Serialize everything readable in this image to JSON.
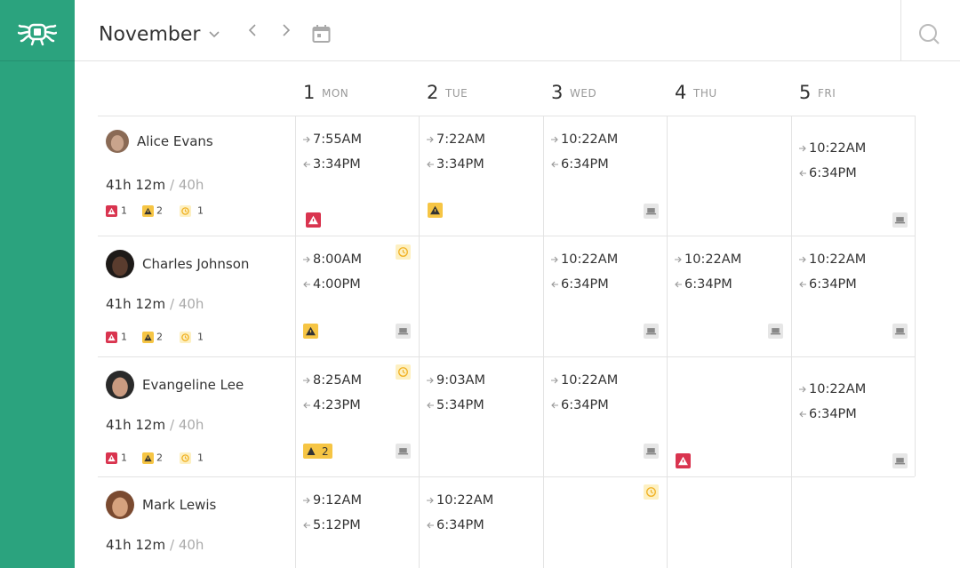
{
  "header": {
    "month": "November"
  },
  "days": [
    {
      "number": "1",
      "name": "MON"
    },
    {
      "number": "2",
      "name": "TUE"
    },
    {
      "number": "3",
      "name": "WED"
    },
    {
      "number": "4",
      "name": "THU"
    },
    {
      "number": "5",
      "name": "FRI"
    }
  ],
  "employees": [
    {
      "name": "Alice Evans",
      "worked": "41h 12m",
      "planned": "/ 40h",
      "alerts": 1,
      "warnings": 2,
      "late": 1,
      "shifts": [
        {
          "in": "7:55AM",
          "out": "3:34PM"
        },
        {
          "in": "7:22AM",
          "out": "3:34PM"
        },
        {
          "in": "10:22AM",
          "out": "6:34PM"
        },
        null,
        {
          "in": "10:22AM",
          "out": "6:34PM"
        }
      ]
    },
    {
      "name": "Charles Johnson",
      "worked": "41h 12m",
      "planned": "/ 40h",
      "alerts": 1,
      "warnings": 2,
      "late": 1,
      "shifts": [
        {
          "in": "8:00AM",
          "out": "4:00PM"
        },
        null,
        {
          "in": "10:22AM",
          "out": "6:34PM"
        },
        {
          "in": "10:22AM",
          "out": "6:34PM"
        },
        {
          "in": "10:22AM",
          "out": "6:34PM"
        }
      ]
    },
    {
      "name": "Evangeline Lee",
      "worked": "41h 12m",
      "planned": "/ 40h",
      "alerts": 1,
      "warnings": 2,
      "late": 1,
      "shifts": [
        {
          "in": "8:25AM",
          "out": "4:23PM",
          "warning_count": 2
        },
        {
          "in": "9:03AM",
          "out": "5:34PM"
        },
        {
          "in": "10:22AM",
          "out": "6:34PM"
        },
        null,
        {
          "in": "10:22AM",
          "out": "6:34PM"
        }
      ]
    },
    {
      "name": "Mark Lewis",
      "worked": "41h 12m",
      "planned": "/ 40h",
      "shifts": [
        {
          "in": "9:12AM",
          "out": "5:12PM"
        },
        {
          "in": "10:22AM",
          "out": "6:34PM"
        },
        null,
        null,
        null
      ]
    }
  ]
}
